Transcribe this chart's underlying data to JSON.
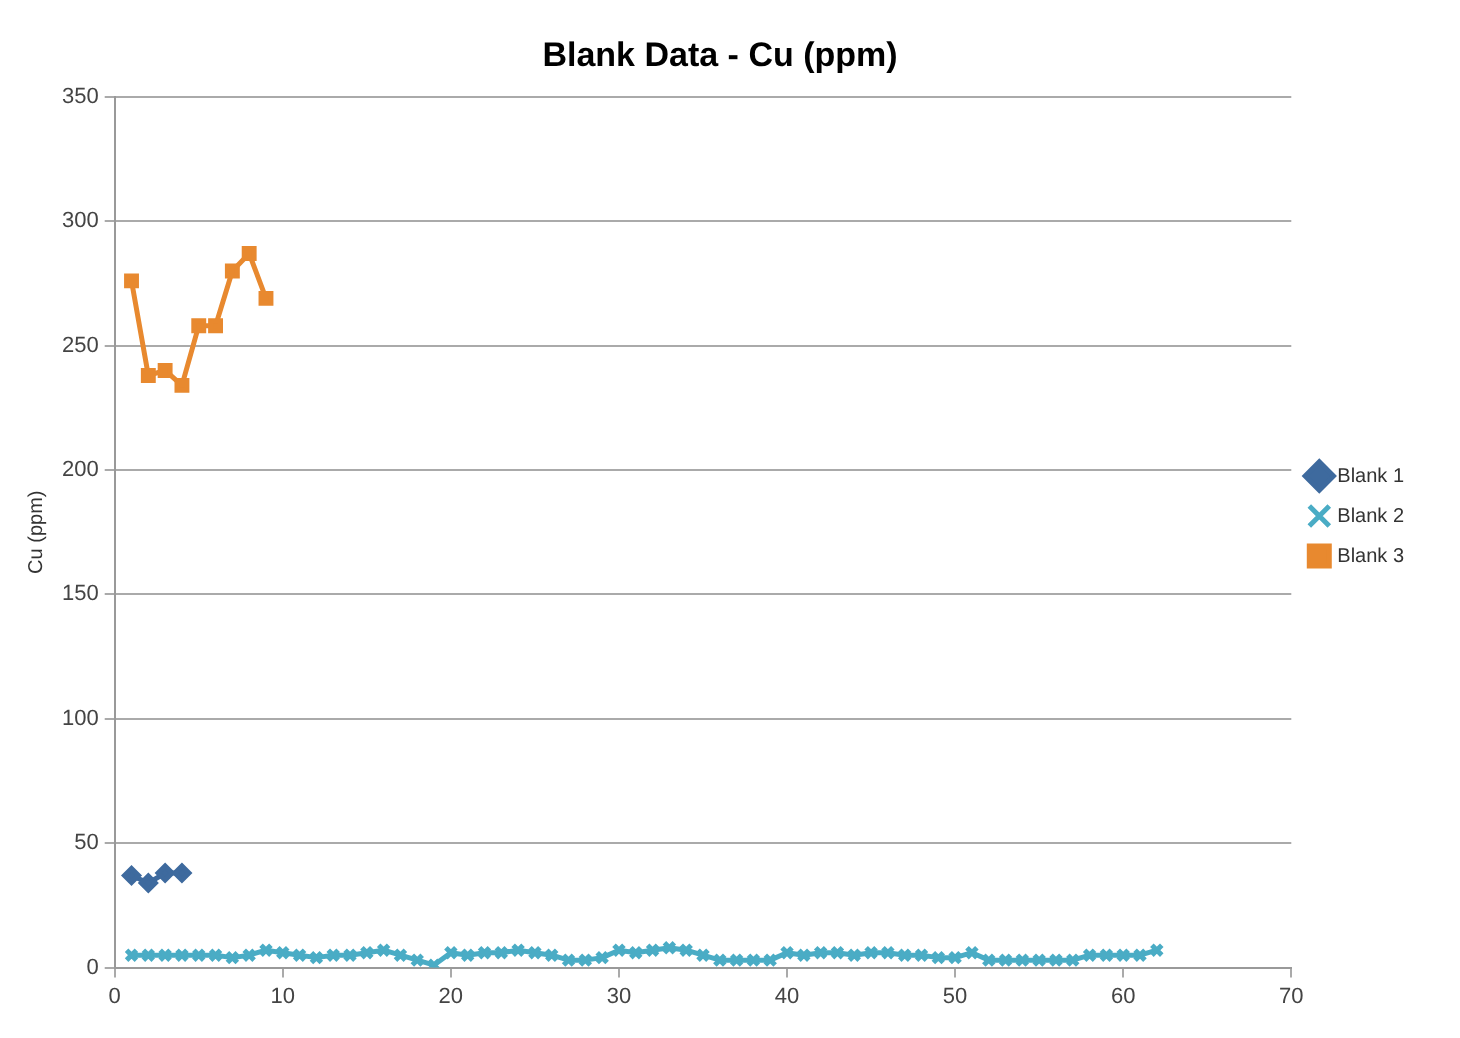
{
  "chart_data": {
    "type": "line",
    "title": "Blank Data - Cu (ppm)",
    "ylabel": "Cu (ppm)",
    "xlim": [
      0,
      70
    ],
    "xticks": [
      0,
      10,
      20,
      30,
      40,
      50,
      60,
      70
    ],
    "ylim": [
      0,
      350
    ],
    "yticks": [
      0,
      50,
      100,
      150,
      200,
      250,
      300,
      350
    ],
    "grid": "y",
    "legend": "right",
    "series": [
      {
        "name": "Blank 1",
        "color": "#3e6a9e",
        "marker": "diamond",
        "x": [
          1,
          2,
          3,
          4
        ],
        "values": [
          37,
          34,
          38,
          38
        ]
      },
      {
        "name": "Blank 2",
        "color": "#4aacc5",
        "marker": "cross",
        "x": [
          1,
          2,
          3,
          4,
          5,
          6,
          7,
          8,
          9,
          10,
          11,
          12,
          13,
          14,
          15,
          16,
          17,
          18,
          19,
          20,
          21,
          22,
          23,
          24,
          25,
          26,
          27,
          28,
          29,
          30,
          31,
          32,
          33,
          34,
          35,
          36,
          37,
          38,
          39,
          40,
          41,
          42,
          43,
          44,
          45,
          46,
          47,
          48,
          49,
          50,
          51,
          52,
          53,
          54,
          55,
          56,
          57,
          58,
          59,
          60,
          61,
          62
        ],
        "values": [
          5,
          5,
          5,
          5,
          5,
          5,
          4,
          5,
          7,
          6,
          5,
          4,
          5,
          5,
          6,
          7,
          5,
          3,
          1,
          6,
          5,
          6,
          6,
          7,
          6,
          5,
          3,
          3,
          4,
          7,
          6,
          7,
          8,
          7,
          5,
          3,
          3,
          3,
          3,
          6,
          5,
          6,
          6,
          5,
          6,
          6,
          5,
          5,
          4,
          4,
          6,
          3,
          3,
          3,
          3,
          3,
          3,
          5,
          5,
          5,
          5,
          7
        ]
      },
      {
        "name": "Blank 3",
        "color": "#e8892f",
        "marker": "square",
        "x": [
          1,
          2,
          3,
          4,
          5,
          6,
          7,
          8,
          9
        ],
        "values": [
          276,
          238,
          240,
          234,
          258,
          258,
          280,
          287,
          269
        ]
      }
    ]
  }
}
